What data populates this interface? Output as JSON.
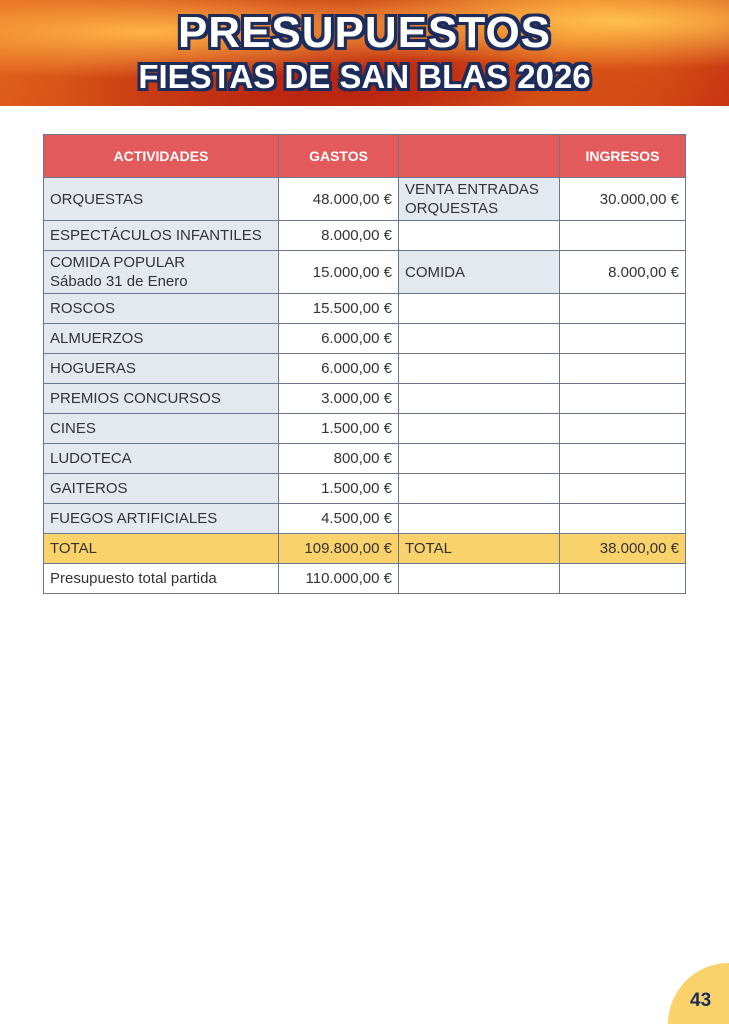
{
  "header": {
    "title": "PRESUPUESTOS",
    "subtitle": "FIESTAS DE SAN BLAS 2026"
  },
  "table": {
    "headers": [
      "ACTIVIDADES",
      "GASTOS",
      "",
      "INGRESOS"
    ],
    "rows": [
      [
        "ORQUESTAS",
        "48.000,00 €",
        "VENTA ENTRADAS ORQUESTAS",
        "30.000,00 €"
      ],
      [
        "ESPECTÁCULOS INFANTILES",
        "8.000,00 €",
        "",
        ""
      ],
      [
        "COMIDA POPULAR Sábado 31 de Enero",
        "15.000,00 €",
        "COMIDA",
        "8.000,00 €"
      ],
      [
        "ROSCOS",
        "15.500,00 €",
        "",
        ""
      ],
      [
        "ALMUERZOS",
        "6.000,00 €",
        "",
        ""
      ],
      [
        "HOGUERAS",
        "6.000,00 €",
        "",
        ""
      ],
      [
        "PREMIOS CONCURSOS",
        "3.000,00 €",
        "",
        ""
      ],
      [
        "CINES",
        "1.500,00 €",
        "",
        ""
      ],
      [
        "LUDOTECA",
        "800,00 €",
        "",
        ""
      ],
      [
        "GAITEROS",
        "1.500,00 €",
        "",
        ""
      ],
      [
        "FUEGOS ARTIFICIALES",
        "4.500,00 €",
        "",
        ""
      ]
    ],
    "total": [
      "TOTAL",
      "109.800,00 €",
      "TOTAL",
      "38.000,00 €"
    ],
    "budget": [
      "Presupuesto total partida",
      "110.000,00 €",
      "",
      ""
    ]
  },
  "page_number": "43"
}
